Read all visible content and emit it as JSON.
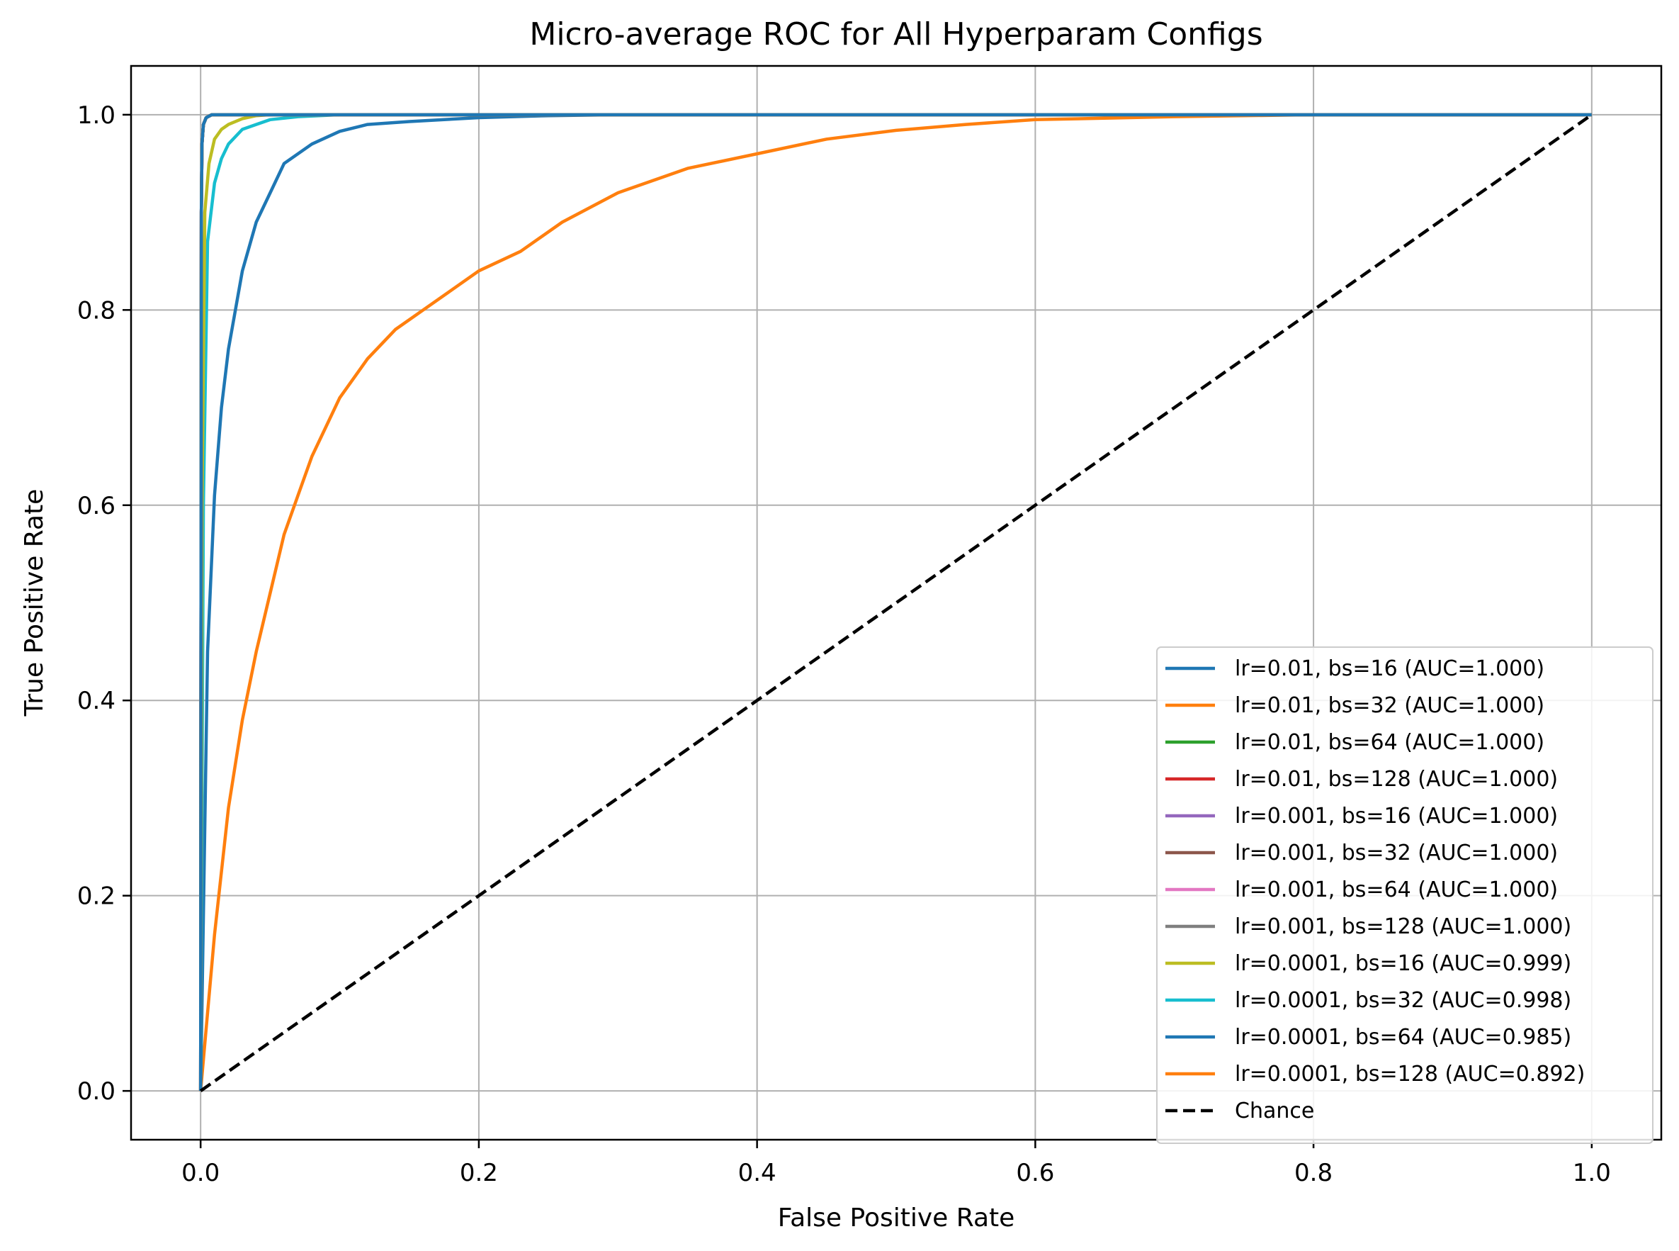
{
  "chart_data": {
    "type": "line",
    "title": "Micro-average ROC for All Hyperparam Configs",
    "xlabel": "False Positive Rate",
    "ylabel": "True Positive Rate",
    "xlim": [
      -0.05,
      1.05
    ],
    "ylim": [
      -0.05,
      1.05
    ],
    "xticks": [
      "0.0",
      "0.2",
      "0.4",
      "0.6",
      "0.8",
      "1.0"
    ],
    "yticks": [
      "0.0",
      "0.2",
      "0.4",
      "0.6",
      "0.8",
      "1.0"
    ],
    "grid": true,
    "legend_position": "lower-right",
    "series": [
      {
        "name": "lr=0.01, bs=16 (AUC=1.000)",
        "color": "#1f77b4",
        "x": [
          0,
          0.0005,
          0.001,
          0.002,
          0.004,
          0.008,
          1.0
        ],
        "y": [
          0,
          0.9,
          0.97,
          0.99,
          0.997,
          1.0,
          1.0
        ]
      },
      {
        "name": "lr=0.01, bs=32 (AUC=1.000)",
        "color": "#ff7f0e",
        "x": [
          0,
          0.0005,
          0.001,
          0.002,
          0.004,
          0.008,
          1.0
        ],
        "y": [
          0,
          0.9,
          0.97,
          0.99,
          0.997,
          1.0,
          1.0
        ]
      },
      {
        "name": "lr=0.01, bs=64 (AUC=1.000)",
        "color": "#2ca02c",
        "x": [
          0,
          0.0005,
          0.001,
          0.002,
          0.004,
          0.008,
          1.0
        ],
        "y": [
          0,
          0.9,
          0.97,
          0.99,
          0.997,
          1.0,
          1.0
        ]
      },
      {
        "name": "lr=0.01, bs=128 (AUC=1.000)",
        "color": "#d62728",
        "x": [
          0,
          0.0005,
          0.001,
          0.002,
          0.004,
          0.008,
          1.0
        ],
        "y": [
          0,
          0.9,
          0.97,
          0.99,
          0.997,
          1.0,
          1.0
        ]
      },
      {
        "name": "lr=0.001, bs=16 (AUC=1.000)",
        "color": "#9467bd",
        "x": [
          0,
          0.0005,
          0.001,
          0.002,
          0.004,
          0.008,
          1.0
        ],
        "y": [
          0,
          0.9,
          0.97,
          0.99,
          0.997,
          1.0,
          1.0
        ]
      },
      {
        "name": "lr=0.001, bs=32 (AUC=1.000)",
        "color": "#8c564b",
        "x": [
          0,
          0.0005,
          0.001,
          0.002,
          0.004,
          0.008,
          1.0
        ],
        "y": [
          0,
          0.9,
          0.97,
          0.99,
          0.997,
          1.0,
          1.0
        ]
      },
      {
        "name": "lr=0.001, bs=64 (AUC=1.000)",
        "color": "#e377c2",
        "x": [
          0,
          0.0005,
          0.001,
          0.002,
          0.004,
          0.008,
          1.0
        ],
        "y": [
          0,
          0.9,
          0.97,
          0.99,
          0.997,
          1.0,
          1.0
        ]
      },
      {
        "name": "lr=0.001, bs=128 (AUC=1.000)",
        "color": "#7f7f7f",
        "x": [
          0,
          0.0005,
          0.001,
          0.002,
          0.004,
          0.008,
          1.0
        ],
        "y": [
          0,
          0.9,
          0.97,
          0.99,
          0.997,
          1.0,
          1.0
        ]
      },
      {
        "name": "lr=0.0001, bs=16 (AUC=0.999)",
        "color": "#bcbd22",
        "x": [
          0,
          0.001,
          0.003,
          0.006,
          0.01,
          0.015,
          0.02,
          0.03,
          0.04,
          0.05,
          1.0
        ],
        "y": [
          0,
          0.6,
          0.9,
          0.95,
          0.975,
          0.985,
          0.99,
          0.996,
          0.999,
          1.0,
          1.0
        ]
      },
      {
        "name": "lr=0.0001, bs=32 (AUC=0.998)",
        "color": "#17becf",
        "x": [
          0,
          0.002,
          0.005,
          0.01,
          0.015,
          0.02,
          0.03,
          0.04,
          0.05,
          0.07,
          0.1,
          1.0
        ],
        "y": [
          0,
          0.6,
          0.87,
          0.93,
          0.955,
          0.97,
          0.985,
          0.99,
          0.995,
          0.998,
          1.0,
          1.0
        ]
      },
      {
        "name": "lr=0.0001, bs=64 (AUC=0.985)",
        "color": "#1f77b4",
        "x": [
          0,
          0.005,
          0.01,
          0.015,
          0.02,
          0.03,
          0.04,
          0.05,
          0.06,
          0.08,
          0.1,
          0.12,
          0.15,
          0.2,
          0.25,
          0.3,
          0.5,
          1.0
        ],
        "y": [
          0,
          0.45,
          0.61,
          0.7,
          0.76,
          0.84,
          0.89,
          0.92,
          0.95,
          0.97,
          0.983,
          0.99,
          0.993,
          0.997,
          0.999,
          1.0,
          1.0,
          1.0
        ]
      },
      {
        "name": "lr=0.0001, bs=128 (AUC=0.892)",
        "color": "#ff7f0e",
        "x": [
          0,
          0.01,
          0.02,
          0.03,
          0.04,
          0.05,
          0.06,
          0.07,
          0.08,
          0.09,
          0.1,
          0.12,
          0.14,
          0.16,
          0.18,
          0.2,
          0.23,
          0.26,
          0.3,
          0.35,
          0.4,
          0.45,
          0.5,
          0.55,
          0.6,
          0.7,
          0.8,
          1.0
        ],
        "y": [
          0,
          0.16,
          0.29,
          0.38,
          0.45,
          0.51,
          0.57,
          0.61,
          0.65,
          0.68,
          0.71,
          0.75,
          0.78,
          0.8,
          0.82,
          0.84,
          0.86,
          0.89,
          0.92,
          0.945,
          0.96,
          0.975,
          0.984,
          0.99,
          0.995,
          0.998,
          1.0,
          1.0
        ]
      },
      {
        "name": "Chance",
        "color": "#000000",
        "dashed": true,
        "x": [
          0,
          1
        ],
        "y": [
          0,
          1
        ]
      }
    ]
  }
}
